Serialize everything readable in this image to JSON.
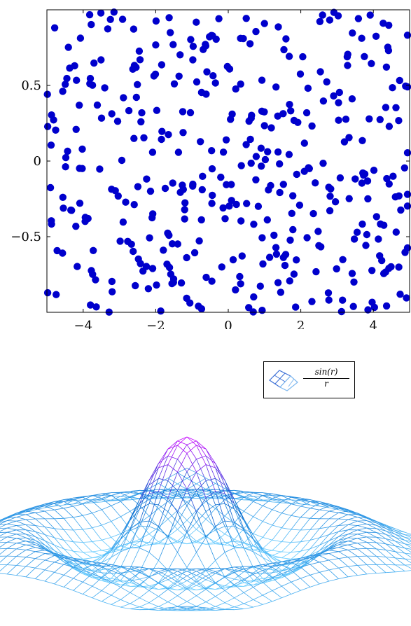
{
  "chart_data": [
    {
      "type": "scatter",
      "title": "",
      "xlabel": "",
      "ylabel": "",
      "xlim": [
        -5,
        5
      ],
      "ylim": [
        -1,
        1
      ],
      "x_ticks": [
        -4,
        -2,
        0,
        2,
        4
      ],
      "x_tick_labels": [
        "−4",
        "−2",
        "0",
        "2",
        "4"
      ],
      "y_ticks": [
        -0.5,
        0,
        0.5
      ],
      "y_tick_labels": [
        "−0.5",
        "0",
        "0.5"
      ],
      "marker_color": "#0000cc",
      "grid": false,
      "series": [
        {
          "n_points": 400,
          "distribution": "uniform random over x in [-5,5], y in [-1,1]"
        }
      ]
    },
    {
      "type": "surface",
      "function": "sin(r)/r",
      "legend": {
        "numerator": "sin(r)",
        "denominator": "r",
        "placement": "top-right"
      },
      "colormap": [
        "#66ccff",
        "#0066cc",
        "#cc00ff"
      ],
      "grid": false
    }
  ]
}
